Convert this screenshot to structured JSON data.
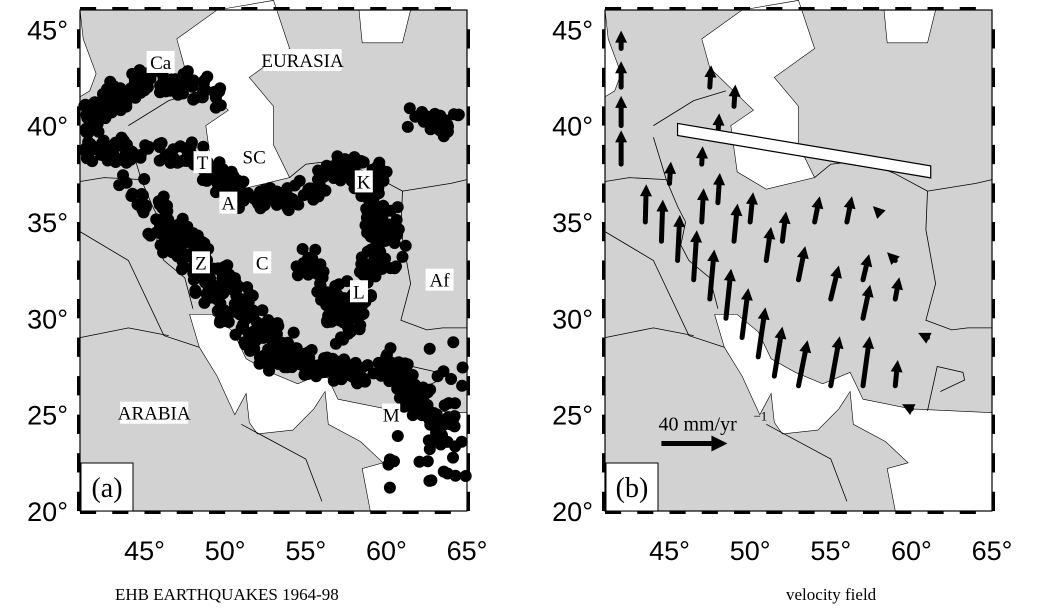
{
  "colors": {
    "land": "#d2d2d2",
    "sea": "#ffffff",
    "ink": "#000000"
  },
  "axes": {
    "lon_ticks": [
      "45°",
      "50°",
      "55°",
      "60°",
      "65°"
    ],
    "lat_ticks": [
      "45°",
      "40°",
      "35°",
      "30°",
      "25°",
      "20°"
    ],
    "lon_range": [
      41,
      65
    ],
    "lat_range": [
      20,
      46
    ]
  },
  "panel_a": {
    "label": "(a)",
    "caption": "EHB EARTHQUAKES 1964-98",
    "place_labels": [
      {
        "text": "Ca",
        "lon": 46.0,
        "lat": 43.2
      },
      {
        "text": "EURASIA",
        "lon": 54.8,
        "lat": 43.3
      },
      {
        "text": "T",
        "lon": 48.6,
        "lat": 38.0
      },
      {
        "text": "SC",
        "lon": 51.8,
        "lat": 38.3
      },
      {
        "text": "K",
        "lon": 58.6,
        "lat": 37.0
      },
      {
        "text": "A",
        "lon": 50.2,
        "lat": 35.9
      },
      {
        "text": "Z",
        "lon": 48.5,
        "lat": 32.8
      },
      {
        "text": "C",
        "lon": 52.3,
        "lat": 32.8
      },
      {
        "text": "L",
        "lon": 58.3,
        "lat": 31.3
      },
      {
        "text": "Af",
        "lon": 63.3,
        "lat": 31.9
      },
      {
        "text": "ARABIA",
        "lon": 45.6,
        "lat": 25.0
      },
      {
        "text": "M",
        "lon": 60.3,
        "lat": 24.9
      }
    ]
  },
  "panel_b": {
    "label": "(b)",
    "caption": "velocity field",
    "scale_label": "40 mm/yr",
    "scale_exponent": "−1",
    "scale_value_mm_yr": 40
  }
}
